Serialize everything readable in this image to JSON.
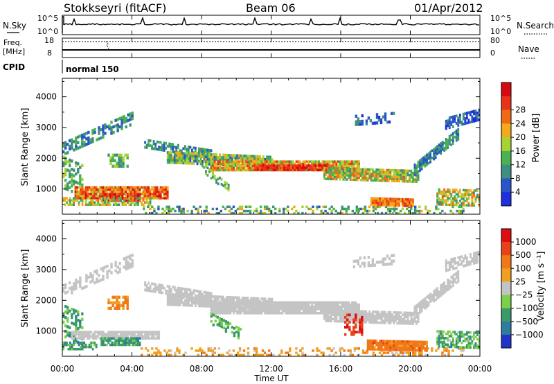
{
  "header": {
    "station": "Stokkseyri (fitACF)",
    "beam": "Beam 06",
    "date": "01/Apr/2012"
  },
  "noise_panel": {
    "left_label": "N.Sky",
    "right_label": "N.Search",
    "left_ticks": [
      "10^5",
      "10^0"
    ],
    "right_ticks": [
      "10^5",
      "10^0"
    ]
  },
  "freq_panel": {
    "left_label_1": "Freq.",
    "left_label_2": "[MHz]",
    "right_label": "Nave",
    "left_ticks": [
      "18",
      "8"
    ],
    "right_ticks": [
      "80",
      "0"
    ],
    "cpid_label": "CPID",
    "cpid_value": "normal 150"
  },
  "chart_data": [
    {
      "type": "heatmap",
      "name": "power",
      "ylabel": "Slant Range [km]",
      "ylim": [
        180,
        4600
      ],
      "yticks": [
        "1000",
        "2000",
        "3000",
        "4000"
      ],
      "colorbar_label": "Power [dB]",
      "colorbar_ticks": [
        "4",
        "8",
        "12",
        "16",
        "20",
        "24",
        "28"
      ],
      "colorbar_colors": [
        "#1e2fe0",
        "#2a55c8",
        "#3f8f80",
        "#49b251",
        "#a8d234",
        "#f2a91c",
        "#f06a14",
        "#e8331c",
        "#d40a10"
      ]
    },
    {
      "type": "heatmap",
      "name": "velocity",
      "ylabel": "Slant Range [km]",
      "ylim": [
        180,
        4600
      ],
      "yticks": [
        "1000",
        "2000",
        "3000",
        "4000"
      ],
      "colorbar_label": "Velocity [m s⁻¹]",
      "colorbar_ticks": [
        "1000",
        "500",
        "100",
        "25",
        "−25",
        "−100",
        "−500",
        "−1000"
      ],
      "colorbar_colors": [
        "#2233c8",
        "#2f7ca0",
        "#3a9a6a",
        "#7bd04a",
        "#c4c4c4",
        "#f0a020",
        "#f07818",
        "#e8421a",
        "#dd0d12"
      ]
    }
  ],
  "time_axis": {
    "ticks": [
      "00:00",
      "04:00",
      "08:00",
      "12:00",
      "16:00",
      "20:00",
      "00:00"
    ],
    "xlabel": "Time UT",
    "xlim": [
      0,
      24
    ]
  }
}
